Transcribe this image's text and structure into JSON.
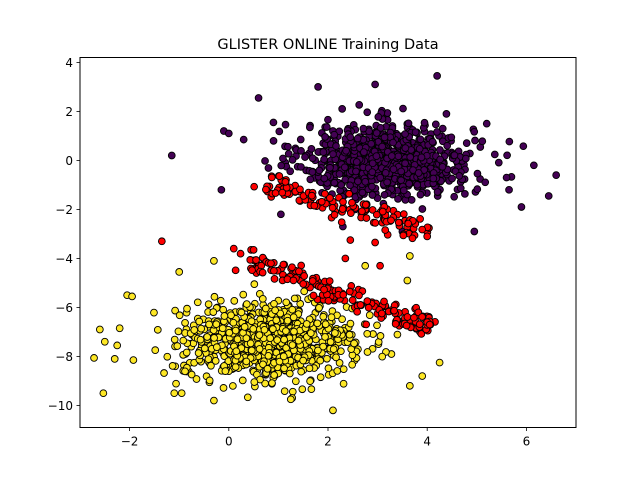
{
  "chart_data": {
    "type": "scatter",
    "title": "GLISTER ONLINE Training Data",
    "xlabel": "",
    "ylabel": "",
    "xlim": [
      -3.0,
      7.0
    ],
    "ylim": [
      -10.9,
      4.2
    ],
    "xticks": [
      -2,
      0,
      2,
      4,
      6
    ],
    "yticks": [
      -10,
      -8,
      -6,
      -4,
      -2,
      0,
      2,
      4
    ],
    "grid": false,
    "legend": "none",
    "marker_edge_color": "#000000",
    "series": [
      {
        "color": "#440154",
        "description": "upper cluster",
        "center": [
          3.2,
          0.0
        ],
        "spread": [
          0.85,
          0.75
        ],
        "n": 900,
        "points": [
          [
            -1.15,
            0.2
          ],
          [
            -0.1,
            1.2
          ],
          [
            0.6,
            2.55
          ],
          [
            -0.15,
            -1.2
          ],
          [
            6.6,
            -0.6
          ],
          [
            6.45,
            -1.45
          ],
          [
            6.15,
            -0.2
          ],
          [
            5.9,
            -1.9
          ],
          [
            2.95,
            3.1
          ],
          [
            4.2,
            3.45
          ],
          [
            1.8,
            3.0
          ],
          [
            0.9,
            1.55
          ],
          [
            0.3,
            0.85
          ],
          [
            2.3,
            -2.7
          ],
          [
            4.95,
            -2.9
          ],
          [
            3.5,
            -2.9
          ],
          [
            5.65,
            -1.2
          ],
          [
            5.6,
            -0.7
          ],
          [
            5.2,
            1.5
          ],
          [
            0.0,
            1.1
          ],
          [
            1.05,
            -2.2
          ],
          [
            2.55,
            -2.0
          ]
        ]
      },
      {
        "color": "#fde725",
        "description": "lower cluster",
        "center": [
          0.8,
          -7.4
        ],
        "spread": [
          0.85,
          0.75
        ],
        "n": 1000,
        "points": [
          [
            -2.6,
            -6.9
          ],
          [
            -2.5,
            -7.4
          ],
          [
            -2.3,
            -8.1
          ],
          [
            -2.05,
            -5.5
          ],
          [
            -1.95,
            -5.55
          ],
          [
            -1.1,
            -9.5
          ],
          [
            -0.95,
            -9.5
          ],
          [
            -0.3,
            -9.8
          ],
          [
            1.25,
            -9.75
          ],
          [
            2.1,
            -10.2
          ],
          [
            3.65,
            -9.2
          ],
          [
            3.9,
            -8.8
          ],
          [
            4.25,
            -8.25
          ],
          [
            3.65,
            -3.9
          ],
          [
            2.75,
            -4.3
          ],
          [
            -0.3,
            -4.1
          ],
          [
            -1.0,
            -4.55
          ],
          [
            3.6,
            -4.9
          ],
          [
            -2.2,
            -6.85
          ],
          [
            -2.25,
            -7.55
          ]
        ]
      },
      {
        "color": "#ff0000",
        "description": "boundary region",
        "segments": [
          {
            "from": [
              0.75,
              -1.0
            ],
            "to": [
              4.05,
              -2.85
            ],
            "spread": 0.25,
            "n": 130
          },
          {
            "from": [
              0.35,
              -4.1
            ],
            "to": [
              4.1,
              -6.8
            ],
            "spread": 0.25,
            "n": 170
          }
        ],
        "points": [
          [
            -1.35,
            -3.3
          ],
          [
            0.1,
            -3.6
          ],
          [
            0.45,
            -3.65
          ],
          [
            0.5,
            -3.65
          ],
          [
            2.45,
            -3.25
          ],
          [
            2.95,
            -3.35
          ],
          [
            4.0,
            -3.1
          ],
          [
            2.35,
            -4.0
          ],
          [
            3.05,
            -4.3
          ],
          [
            1.1,
            -4.25
          ],
          [
            0.85,
            -4.2
          ],
          [
            4.0,
            -6.6
          ],
          [
            4.05,
            -6.7
          ]
        ]
      }
    ]
  }
}
